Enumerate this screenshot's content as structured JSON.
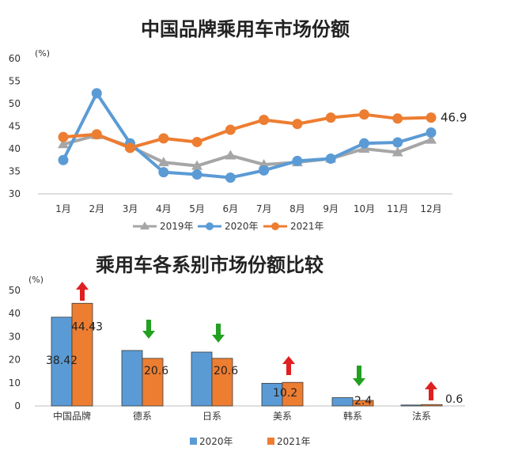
{
  "chart_data": [
    {
      "type": "line",
      "title": "中国品牌乘用车市场份额",
      "unit": "(%)",
      "categories": [
        "1月",
        "2月",
        "3月",
        "4月",
        "5月",
        "6月",
        "7月",
        "8月",
        "9月",
        "10月",
        "11月",
        "12月"
      ],
      "series": [
        {
          "name": "2019年",
          "color": "#a6a6a6",
          "marker": "triangle",
          "values": [
            41.0,
            43.0,
            40.5,
            37.0,
            36.2,
            38.5,
            36.5,
            37.0,
            37.8,
            40.0,
            39.2,
            42.0
          ]
        },
        {
          "name": "2020年",
          "color": "#5b9bd5",
          "marker": "circle",
          "values": [
            37.5,
            52.3,
            41.2,
            34.8,
            34.3,
            33.6,
            35.2,
            37.3,
            37.8,
            41.2,
            41.4,
            43.6
          ]
        },
        {
          "name": "2021年",
          "color": "#ed7d31",
          "marker": "circle",
          "values": [
            42.6,
            43.2,
            40.2,
            42.3,
            41.5,
            44.2,
            46.4,
            45.5,
            46.9,
            47.6,
            46.7,
            46.9
          ]
        }
      ],
      "ylim": [
        30,
        60
      ],
      "yticks": [
        30,
        35,
        40,
        45,
        50,
        55,
        60
      ],
      "end_label": "46.9",
      "grid": false,
      "legend": "bottom"
    },
    {
      "type": "bar",
      "title": "乘用车各系别市场份额比较",
      "unit": "(%)",
      "categories": [
        "中国品牌",
        "德系",
        "日系",
        "美系",
        "韩系",
        "法系"
      ],
      "series": [
        {
          "name": "2020年",
          "color": "#5b9bd5",
          "values": [
            38.42,
            24.0,
            23.3,
            9.8,
            3.6,
            0.4
          ]
        },
        {
          "name": "2021年",
          "color": "#ed7d31",
          "values": [
            44.43,
            20.6,
            20.6,
            10.2,
            2.4,
            0.6
          ]
        }
      ],
      "data_labels": {
        "2020年": [
          "38.42",
          "",
          "",
          "",
          "",
          ""
        ],
        "2021年": [
          "44.43",
          "20.6",
          "20.6",
          "10.2",
          "2.4",
          "0.6"
        ]
      },
      "trend_arrows": [
        "up",
        "down",
        "down",
        "up",
        "down",
        "up"
      ],
      "arrow_colors": {
        "up": "#e02020",
        "down": "#22a020"
      },
      "ylim": [
        0,
        50
      ],
      "yticks": [
        0,
        10,
        20,
        30,
        40,
        50
      ],
      "grid": false,
      "legend": "bottom"
    }
  ]
}
